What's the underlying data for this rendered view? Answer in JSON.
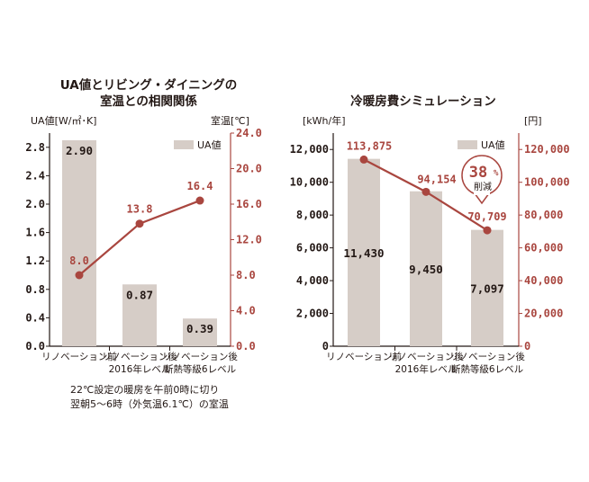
{
  "chart_data": [
    {
      "type": "bar",
      "title_line1": "UA値とリビング・ダイニングの",
      "title_line2": "室温との相関関係",
      "left_axis_label": "UA値[W/㎡･K]",
      "right_axis_label": "室温[℃]",
      "legend": "UA値",
      "categories": [
        {
          "line1": "リノベーション前",
          "line2": ""
        },
        {
          "line1": "リノベーション後",
          "line2": "2016年レベル"
        },
        {
          "line1": "リノベーション後",
          "line2": "断熱等級6レベル"
        }
      ],
      "bar_values": [
        2.9,
        0.87,
        0.39
      ],
      "bar_labels": [
        "2.90",
        "0.87",
        "0.39"
      ],
      "line_values": [
        8.0,
        13.8,
        16.4
      ],
      "line_labels": [
        "8.0",
        "13.8",
        "16.4"
      ],
      "left_ylim": [
        0,
        3.0
      ],
      "right_ylim": [
        0,
        24
      ],
      "left_ticks": [
        "0.0",
        "0.4",
        "0.8",
        "1.2",
        "1.6",
        "2.0",
        "2.4",
        "2.8"
      ],
      "left_tick_values": [
        0,
        0.4,
        0.8,
        1.2,
        1.6,
        2.0,
        2.4,
        2.8
      ],
      "right_ticks": [
        "0.0",
        "4.0",
        "8.0",
        "12.0",
        "16.0",
        "20.0",
        "24.0"
      ],
      "right_tick_values": [
        0,
        4,
        8,
        12,
        16,
        20,
        24
      ],
      "note_line1": "22℃設定の暖房を午前0時に切り",
      "note_line2": "翌朝5～6時（外気温6.1℃）の室温"
    },
    {
      "type": "bar",
      "title": "冷暖房費シミュレーション",
      "left_axis_label": "[kWh/年]",
      "right_axis_label": "[円]",
      "legend": "UA値",
      "categories": [
        {
          "line1": "リノベーション前",
          "line2": ""
        },
        {
          "line1": "リノベーション後",
          "line2": "2016年レベル"
        },
        {
          "line1": "リノベーション後",
          "line2": "断熱等級6レベル"
        }
      ],
      "bar_values": [
        11430,
        9450,
        7097
      ],
      "bar_labels": [
        "11,430",
        "9,450",
        "7,097"
      ],
      "line_values": [
        113875,
        94154,
        70709
      ],
      "line_labels": [
        "113,875",
        "94,154",
        "70,709"
      ],
      "left_ylim": [
        0,
        13000
      ],
      "right_ylim": [
        0,
        130000
      ],
      "left_ticks": [
        "0",
        "2,000",
        "4,000",
        "6,000",
        "8,000",
        "10,000",
        "12,000"
      ],
      "left_tick_values": [
        0,
        2000,
        4000,
        6000,
        8000,
        10000,
        12000
      ],
      "right_ticks": [
        "0",
        "20,000",
        "40,000",
        "60,000",
        "80,000",
        "100,000",
        "120,000"
      ],
      "right_tick_values": [
        0,
        20000,
        40000,
        60000,
        80000,
        100000,
        120000
      ],
      "badge_value": "38",
      "badge_unit": "%",
      "badge_text": "削減"
    }
  ],
  "colors": {
    "bar": "#d6cdc7",
    "line": "#a9463f",
    "axis": "#231815"
  }
}
